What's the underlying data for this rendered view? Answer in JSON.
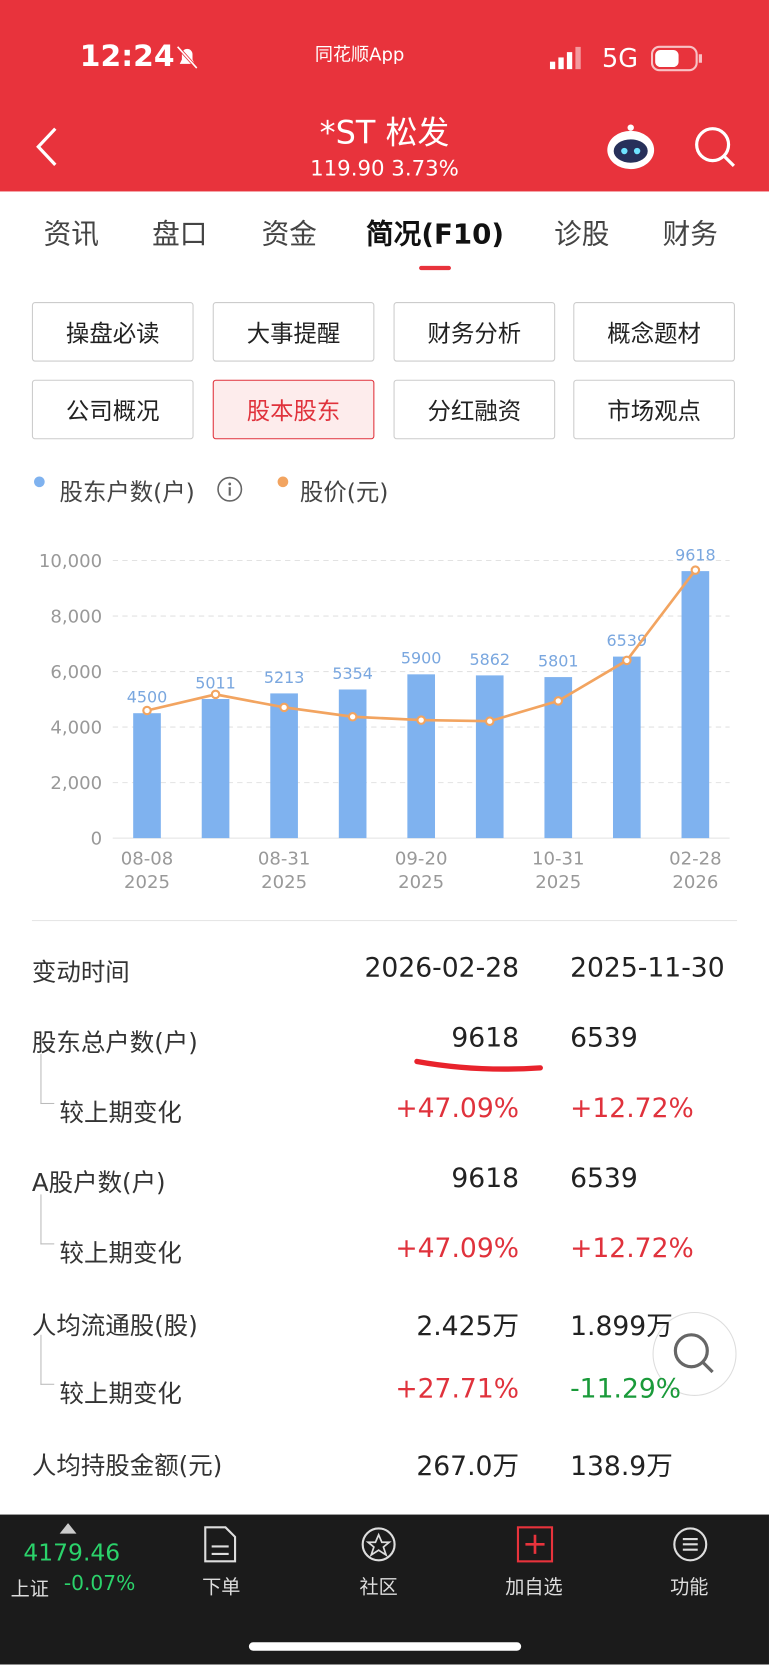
{
  "status_bar": {
    "time": "12:24",
    "app": "同花顺App",
    "network": "5G"
  },
  "header": {
    "title": "*ST 松发",
    "price": "119.90",
    "change": "3.73%"
  },
  "tabs": [
    "资讯",
    "盘口",
    "资金",
    "简况(F10)",
    "诊股",
    "财务"
  ],
  "buttons": [
    "操盘必读",
    "大事提醒",
    "财务分析",
    "概念题材",
    "公司概况",
    "股本股东",
    "分红融资",
    "市场观点"
  ],
  "chart_data": {
    "type": "bar",
    "categories": [
      "08-08\n2025",
      null,
      "08-31\n2025",
      null,
      "09-20\n2025",
      null,
      "10-31\n2025",
      null,
      "02-28\n2026"
    ],
    "series": [
      {
        "name": "股东户数(户)",
        "color": "#7fb2ef",
        "values": [
          4500,
          5011,
          5213,
          5354,
          5900,
          5862,
          5801,
          6539,
          9618
        ]
      },
      {
        "name": "股价(元)",
        "color": "#f2a460",
        "type": "line",
        "axis": "y2",
        "values": [
          57.1,
          64.3,
          58.5,
          54.3,
          52.8,
          52.3,
          61.4,
          79.5,
          119.9
        ]
      }
    ],
    "ylim": [
      0,
      10000
    ],
    "yticks": [
      0,
      {
        "value": 2000,
        "label": "2,000"
      },
      {
        "value": 4000,
        "label": "4,000"
      },
      {
        "value": 6000,
        "label": "6,000"
      },
      {
        "value": 8000,
        "label": "8,000"
      },
      {
        "value": 10000,
        "label": "10,000"
      }
    ],
    "y2lim": [
      0,
      124.2
    ],
    "grid": true
  },
  "table": {
    "rows": [
      [
        "变动时间",
        "2026-02-28",
        "2025-11-30"
      ],
      [
        "股东总户数(户)",
        "9618",
        "6539"
      ],
      [
        "较上期变化",
        "+47.09%",
        "+12.72%"
      ],
      [
        "A股户数(户)",
        "9618",
        "6539"
      ],
      [
        "较上期变化",
        "+47.09%",
        "+12.72%"
      ],
      [
        "人均流通股(股)",
        "2.425万",
        "1.899万"
      ],
      [
        "较上期变化",
        "+27.71%",
        "-11.29%"
      ],
      [
        "人均持股金额(元)",
        "267.0万",
        "138.9万"
      ]
    ]
  },
  "market": {
    "index": "4179.46",
    "name": "上证",
    "change": "-0.07%"
  },
  "nav": [
    "下单",
    "社区",
    "加自选",
    "功能"
  ]
}
